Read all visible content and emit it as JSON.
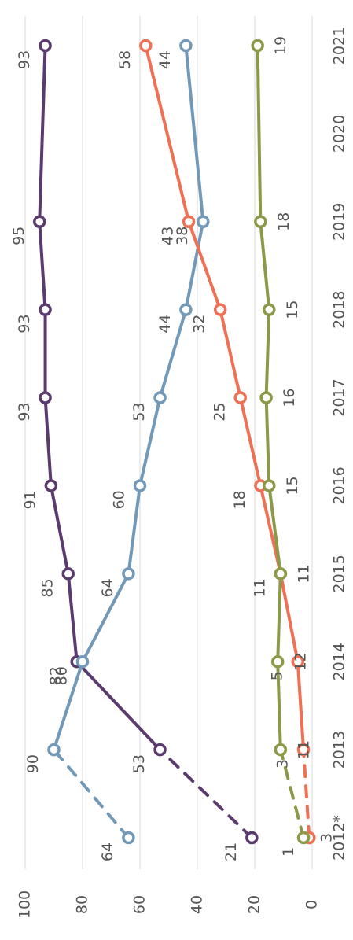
{
  "chart_data": {
    "type": "line",
    "categories": [
      "2012*",
      "2013",
      "2014",
      "2015",
      "2016",
      "2017",
      "2018",
      "2019",
      "2020",
      "2021"
    ],
    "series": [
      {
        "name": null,
        "color": "#5b3a6e",
        "values": [
          21,
          53,
          82,
          85,
          91,
          93,
          93,
          95,
          null,
          93
        ]
      },
      {
        "name": null,
        "color": "#7399b9",
        "values": [
          64,
          90,
          80,
          64,
          60,
          53,
          44,
          38,
          null,
          44
        ]
      },
      {
        "name": null,
        "color": "#ee7156",
        "values": [
          1,
          3,
          5,
          11,
          18,
          25,
          32,
          43,
          null,
          58
        ]
      },
      {
        "name": null,
        "color": "#8a9a48",
        "values": [
          3,
          11,
          12,
          11,
          15,
          16,
          15,
          18,
          null,
          19
        ]
      }
    ],
    "ylim": [
      0,
      100
    ],
    "yticks": [
      0,
      20,
      40,
      60,
      80,
      100
    ],
    "grid": true,
    "first_segment_dashed": true
  }
}
